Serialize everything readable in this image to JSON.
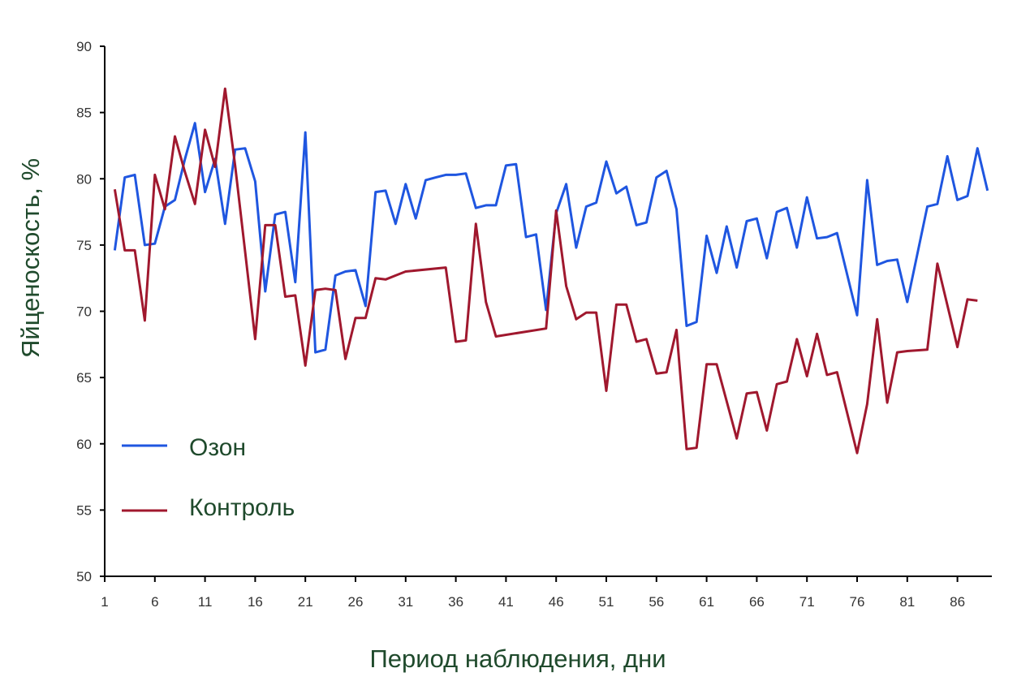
{
  "chart_data": {
    "type": "line",
    "xlabel": "Период наблюдения, дни",
    "ylabel": "Яйценоскость, %",
    "ylim": [
      50,
      90
    ],
    "y_ticks": [
      50,
      55,
      60,
      65,
      70,
      75,
      80,
      85,
      90
    ],
    "x_ticks": [
      1,
      6,
      11,
      16,
      21,
      26,
      31,
      36,
      41,
      46,
      51,
      56,
      61,
      66,
      71,
      76,
      81,
      86
    ],
    "xlim": [
      1,
      92
    ],
    "grid": false,
    "legend_position": "left",
    "series": [
      {
        "name": "Озон",
        "color": "#1f56e0",
        "points": [
          [
            2,
            74.6
          ],
          [
            3,
            80.1
          ],
          [
            4,
            80.3
          ],
          [
            5,
            75.0
          ],
          [
            6,
            75.1
          ],
          [
            7,
            77.9
          ],
          [
            8,
            78.4
          ],
          [
            9,
            81.5
          ],
          [
            10,
            84.2
          ],
          [
            11,
            79.0
          ],
          [
            12,
            81.5
          ],
          [
            13,
            76.6
          ],
          [
            14,
            82.2
          ],
          [
            15,
            82.3
          ],
          [
            16,
            79.8
          ],
          [
            17,
            71.5
          ],
          [
            18,
            77.3
          ],
          [
            19,
            77.5
          ],
          [
            20,
            72.2
          ],
          [
            21,
            83.5
          ],
          [
            22,
            66.9
          ],
          [
            23,
            67.1
          ],
          [
            24,
            72.7
          ],
          [
            25,
            73.0
          ],
          [
            26,
            73.1
          ],
          [
            27,
            70.4
          ],
          [
            28,
            79.0
          ],
          [
            29,
            79.1
          ],
          [
            30,
            76.6
          ],
          [
            31,
            79.6
          ],
          [
            32,
            77.0
          ],
          [
            33,
            79.9
          ],
          [
            34,
            80.1
          ],
          [
            35,
            80.3
          ],
          [
            36,
            80.3
          ],
          [
            37,
            80.4
          ],
          [
            38,
            77.8
          ],
          [
            39,
            78.0
          ],
          [
            40,
            78.0
          ],
          [
            41,
            81.0
          ],
          [
            42,
            81.1
          ],
          [
            43,
            75.6
          ],
          [
            44,
            75.8
          ],
          [
            45,
            70.1
          ],
          [
            46,
            77.4
          ],
          [
            47,
            79.6
          ],
          [
            48,
            74.8
          ],
          [
            49,
            77.9
          ],
          [
            50,
            78.2
          ],
          [
            51,
            81.3
          ],
          [
            52,
            78.9
          ],
          [
            53,
            79.4
          ],
          [
            54,
            76.5
          ],
          [
            55,
            76.7
          ],
          [
            56,
            80.1
          ],
          [
            57,
            80.6
          ],
          [
            58,
            77.7
          ],
          [
            59,
            68.9
          ],
          [
            60,
            69.2
          ],
          [
            61,
            75.7
          ],
          [
            62,
            72.9
          ],
          [
            63,
            76.4
          ],
          [
            64,
            73.3
          ],
          [
            65,
            76.8
          ],
          [
            66,
            77.0
          ],
          [
            67,
            74.0
          ],
          [
            68,
            77.5
          ],
          [
            69,
            77.8
          ],
          [
            70,
            74.8
          ],
          [
            71,
            78.6
          ],
          [
            72,
            75.5
          ],
          [
            73,
            75.6
          ],
          [
            74,
            75.9
          ],
          [
            76,
            69.7
          ],
          [
            77,
            79.9
          ],
          [
            78,
            73.5
          ],
          [
            79,
            73.8
          ],
          [
            80,
            73.9
          ],
          [
            81,
            70.7
          ],
          [
            83,
            77.9
          ],
          [
            84,
            78.1
          ],
          [
            85,
            81.7
          ],
          [
            86,
            78.4
          ],
          [
            87,
            78.7
          ],
          [
            88,
            82.3
          ],
          [
            89,
            79.1
          ]
        ]
      },
      {
        "name": "Контроль",
        "color": "#a0182e",
        "points": [
          [
            2,
            79.2
          ],
          [
            3,
            74.6
          ],
          [
            4,
            74.6
          ],
          [
            5,
            69.3
          ],
          [
            6,
            80.3
          ],
          [
            7,
            77.7
          ],
          [
            8,
            83.2
          ],
          [
            9,
            80.5
          ],
          [
            10,
            78.1
          ],
          [
            11,
            83.7
          ],
          [
            12,
            80.9
          ],
          [
            13,
            86.8
          ],
          [
            14,
            81.0
          ],
          [
            15,
            74.5
          ],
          [
            16,
            67.9
          ],
          [
            17,
            76.5
          ],
          [
            18,
            76.5
          ],
          [
            19,
            71.1
          ],
          [
            20,
            71.2
          ],
          [
            21,
            65.9
          ],
          [
            22,
            71.6
          ],
          [
            23,
            71.7
          ],
          [
            24,
            71.6
          ],
          [
            25,
            66.4
          ],
          [
            26,
            69.5
          ],
          [
            27,
            69.5
          ],
          [
            28,
            72.5
          ],
          [
            29,
            72.4
          ],
          [
            30,
            72.7
          ],
          [
            31,
            73.0
          ],
          [
            35,
            73.3
          ],
          [
            36,
            67.7
          ],
          [
            37,
            67.8
          ],
          [
            38,
            76.6
          ],
          [
            39,
            70.7
          ],
          [
            40,
            68.1
          ],
          [
            45,
            68.7
          ],
          [
            46,
            77.6
          ],
          [
            47,
            71.9
          ],
          [
            48,
            69.4
          ],
          [
            49,
            69.9
          ],
          [
            50,
            69.9
          ],
          [
            51,
            64.0
          ],
          [
            52,
            70.5
          ],
          [
            53,
            70.5
          ],
          [
            54,
            67.7
          ],
          [
            55,
            67.9
          ],
          [
            56,
            65.3
          ],
          [
            57,
            65.4
          ],
          [
            58,
            68.6
          ],
          [
            59,
            59.6
          ],
          [
            60,
            59.7
          ],
          [
            61,
            66.0
          ],
          [
            62,
            66.0
          ],
          [
            64,
            60.4
          ],
          [
            65,
            63.8
          ],
          [
            66,
            63.9
          ],
          [
            67,
            61.0
          ],
          [
            68,
            64.5
          ],
          [
            69,
            64.7
          ],
          [
            70,
            67.9
          ],
          [
            71,
            65.1
          ],
          [
            72,
            68.3
          ],
          [
            73,
            65.2
          ],
          [
            74,
            65.4
          ],
          [
            76,
            59.3
          ],
          [
            77,
            63.0
          ],
          [
            78,
            69.4
          ],
          [
            79,
            63.1
          ],
          [
            80,
            66.9
          ],
          [
            81,
            67.0
          ],
          [
            83,
            67.1
          ],
          [
            84,
            73.6
          ],
          [
            86,
            67.3
          ],
          [
            87,
            70.9
          ],
          [
            88,
            70.8
          ]
        ]
      }
    ]
  }
}
